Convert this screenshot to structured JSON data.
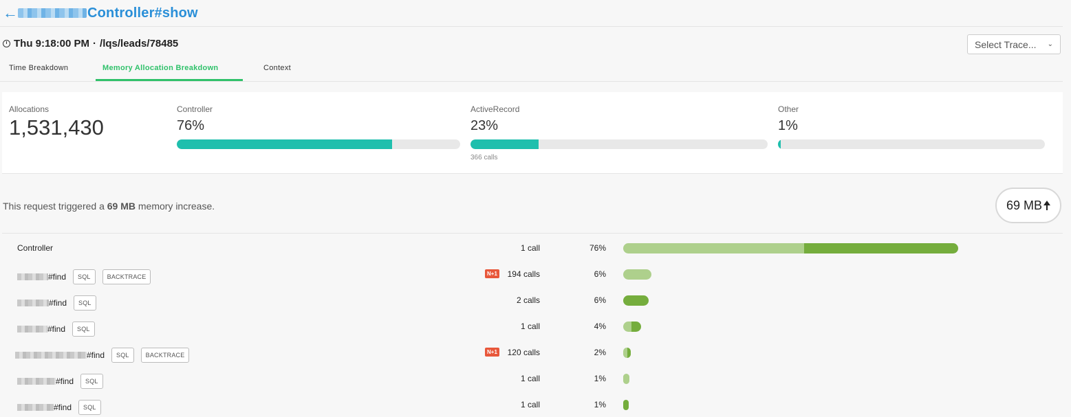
{
  "header": {
    "back_arrow": "←",
    "title": "Controller#show"
  },
  "meta": {
    "time": "Thu 9:18:00 PM",
    "separator": "·",
    "path": "/lqs/leads/78485"
  },
  "trace_select": {
    "label": "Select Trace...",
    "chevron": "chevron-down-icon"
  },
  "tabs": [
    {
      "label": "Time Breakdown"
    },
    {
      "label": "Memory Allocation Breakdown"
    },
    {
      "label": "Context"
    }
  ],
  "summary": {
    "allocations": {
      "label": "Allocations",
      "value": "1,531,430"
    },
    "controller": {
      "label": "Controller",
      "value": "76%",
      "fraction": 0.76
    },
    "activerecord": {
      "label": "ActiveRecord",
      "value": "23%",
      "fraction": 0.23,
      "calls": "366 calls"
    },
    "other": {
      "label": "Other",
      "value": "1%",
      "fraction": 0.01
    }
  },
  "note": {
    "prefix": "This request triggered a",
    "amount": "69 MB",
    "suffix": "memory increase."
  },
  "badge": {
    "value": "69 MB",
    "icon": "arrow-up-icon"
  },
  "rows": [
    {
      "name": "Controller",
      "tags": [],
      "n1": "",
      "calls": "1 call",
      "pct": "76%",
      "light": 0.54,
      "dark": 0.46,
      "scale": 1.0
    },
    {
      "name": "#find",
      "tags": [
        "SQL",
        "BACKTRACE"
      ],
      "n1": "N+1",
      "calls": "194 calls",
      "pct": "6%",
      "light": 1.0,
      "dark": 0.0,
      "scale": 0.085
    },
    {
      "name": "#find",
      "tags": [
        "SQL"
      ],
      "n1": "",
      "calls": "2 calls",
      "pct": "6%",
      "light": 0.0,
      "dark": 1.0,
      "scale": 0.075
    },
    {
      "name": "#find",
      "tags": [
        "SQL"
      ],
      "n1": "",
      "calls": "1 call",
      "pct": "4%",
      "light": 0.45,
      "dark": 0.55,
      "scale": 0.054
    },
    {
      "name": "#find",
      "tags": [
        "SQL",
        "BACKTRACE"
      ],
      "n1": "N+1",
      "calls": "120 calls",
      "pct": "2%",
      "light": 0.5,
      "dark": 0.5,
      "scale": 0.023
    },
    {
      "name": "#find",
      "tags": [
        "SQL"
      ],
      "n1": "",
      "calls": "1 call",
      "pct": "1%",
      "light": 1.0,
      "dark": 0.0,
      "scale": 0.019
    },
    {
      "name": "#find",
      "tags": [
        "SQL"
      ],
      "n1": "",
      "calls": "1 call",
      "pct": "1%",
      "light": 0.0,
      "dark": 1.0,
      "scale": 0.017
    }
  ],
  "colors": {
    "accent_green": "#2fc16a",
    "teal": "#1fbfad",
    "title_blue": "#2a8fd8",
    "bar_light": "#aed08c",
    "bar_dark": "#75ad3d",
    "n1_red": "#e8573a"
  }
}
